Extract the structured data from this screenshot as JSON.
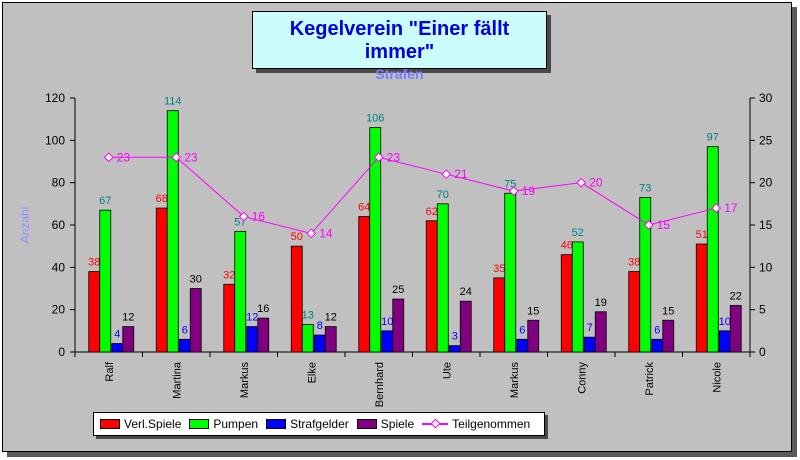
{
  "chart_data": {
    "type": "bar",
    "title": "Kegelverein \"Einer fällt immer\"",
    "subtitle": "Strafen",
    "ylabel": "Anzahl",
    "categories": [
      "Ralf",
      "Martina",
      "Markus",
      "Elke",
      "Bernhard",
      "Ute",
      "Markus",
      "Conny",
      "Patrick",
      "Nicole"
    ],
    "ylim": [
      0,
      120
    ],
    "yticks": [
      0,
      20,
      40,
      60,
      80,
      100,
      120
    ],
    "y2lim": [
      0,
      30
    ],
    "y2ticks": [
      0,
      5,
      10,
      15,
      20,
      25,
      30
    ],
    "grid": false,
    "legend_position": "bottom",
    "series": [
      {
        "name": "Verl.Spiele",
        "type": "bar",
        "axis": "left",
        "color": "#ff0000",
        "label_color": "#ff0000",
        "values": [
          38,
          68,
          32,
          50,
          64,
          62,
          35,
          46,
          38,
          51
        ]
      },
      {
        "name": "Pumpen",
        "type": "bar",
        "axis": "left",
        "color": "#00ff00",
        "label_color": "#008080",
        "values": [
          67,
          114,
          57,
          13,
          106,
          70,
          75,
          52,
          73,
          97
        ]
      },
      {
        "name": "Strafgelder",
        "type": "bar",
        "axis": "left",
        "color": "#0000ff",
        "label_color": "#0000ff",
        "values": [
          4,
          6,
          12,
          8,
          10,
          3,
          6,
          7,
          6,
          10
        ]
      },
      {
        "name": "Spiele",
        "type": "bar",
        "axis": "left",
        "color": "#800080",
        "label_color": "#000000",
        "values": [
          12,
          30,
          16,
          12,
          25,
          24,
          15,
          19,
          15,
          22
        ]
      },
      {
        "name": "Teilgenommen",
        "type": "line",
        "axis": "right",
        "color": "#ff00ff",
        "label_color": "#ff00ff",
        "values": [
          23,
          23,
          16,
          14,
          23,
          21,
          19,
          20,
          15,
          17
        ]
      }
    ]
  }
}
